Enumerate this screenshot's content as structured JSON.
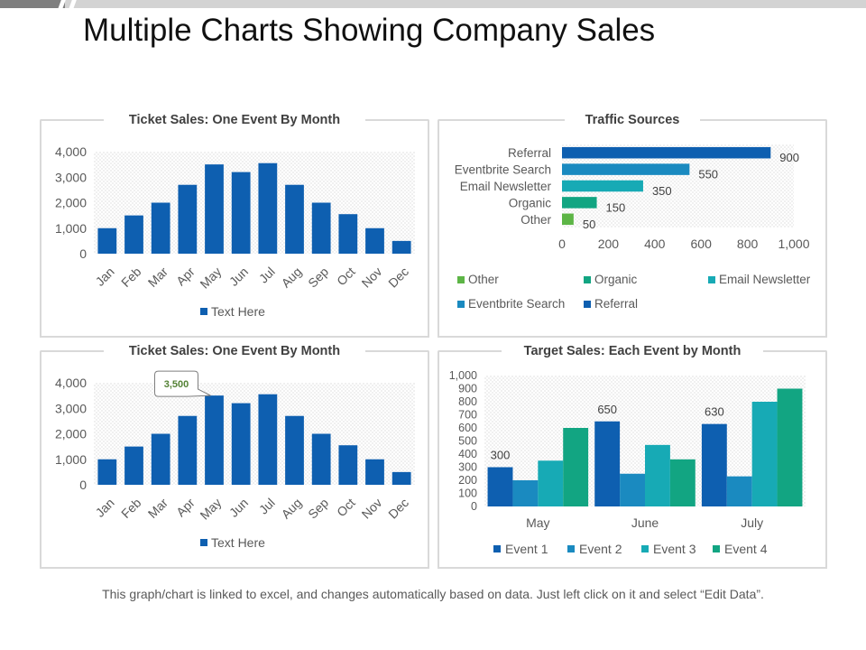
{
  "page": {
    "title": "Multiple Charts Showing Company Sales",
    "footnote": "This graph/chart is linked to excel, and changes automatically based on data. Just left click on it and select “Edit Data”."
  },
  "colors": {
    "blue_dark": "#0E5FB0",
    "blue_mid": "#1A8AC0",
    "teal": "#17AAB5",
    "green_teal": "#12A582",
    "green": "#5DB546",
    "panel_border": "#d9d9d9",
    "callout_text": "#548235"
  },
  "chart_data": [
    {
      "type": "bar",
      "title": "Ticket Sales: One Event By Month",
      "categories": [
        "Jan",
        "Feb",
        "Mar",
        "Apr",
        "May",
        "Jun",
        "Jul",
        "Aug",
        "Sep",
        "Oct",
        "Nov",
        "Dec"
      ],
      "series": [
        {
          "name": "Text Here",
          "values": [
            1000,
            1500,
            2000,
            2700,
            3500,
            3200,
            3550,
            2700,
            2000,
            1550,
            1000,
            500
          ]
        }
      ],
      "yticks": [
        "0",
        "1,000",
        "2,000",
        "3,000",
        "4,000"
      ],
      "ylim": [
        0,
        4000
      ],
      "legend": "bottom",
      "grid": false
    },
    {
      "type": "bar",
      "orientation": "horizontal",
      "title": "Traffic Sources",
      "categories": [
        "Referral",
        "Eventbrite Search",
        "Email Newsletter",
        "Organic",
        "Other"
      ],
      "values": [
        900,
        550,
        350,
        150,
        50
      ],
      "data_labels": [
        "900",
        "550",
        "350",
        "150",
        "50"
      ],
      "xticks": [
        "0",
        "200",
        "400",
        "600",
        "800",
        "1,000"
      ],
      "xlim": [
        0,
        1000
      ],
      "legend_entries": [
        "Other",
        "Organic",
        "Email Newsletter",
        "Eventbrite Search",
        "Referral"
      ],
      "legend": "bottom"
    },
    {
      "type": "bar",
      "title": "Ticket Sales: One Event By Month",
      "categories": [
        "Jan",
        "Feb",
        "Mar",
        "Apr",
        "May",
        "Jun",
        "Jul",
        "Aug",
        "Sep",
        "Oct",
        "Nov",
        "Dec"
      ],
      "series": [
        {
          "name": "Text Here",
          "values": [
            1000,
            1500,
            2000,
            2700,
            3500,
            3200,
            3550,
            2700,
            2000,
            1550,
            1000,
            500
          ]
        }
      ],
      "yticks": [
        "0",
        "1,000",
        "2,000",
        "3,000",
        "4,000"
      ],
      "ylim": [
        0,
        4000
      ],
      "callout": {
        "label": "3,500",
        "category": "May"
      },
      "legend": "bottom"
    },
    {
      "type": "bar",
      "title": "Target Sales: Each Event by Month",
      "categories": [
        "May",
        "June",
        "July"
      ],
      "series": [
        {
          "name": "Event 1",
          "values": [
            300,
            650,
            630
          ]
        },
        {
          "name": "Event 2",
          "values": [
            200,
            250,
            230
          ]
        },
        {
          "name": "Event 3",
          "values": [
            350,
            470,
            800
          ]
        },
        {
          "name": "Event 4",
          "values": [
            600,
            360,
            900
          ]
        }
      ],
      "data_labels": [
        "300",
        "650",
        "630"
      ],
      "yticks": [
        "0",
        "100",
        "200",
        "300",
        "400",
        "500",
        "600",
        "700",
        "800",
        "900",
        "1,000"
      ],
      "ylim": [
        0,
        1000
      ],
      "legend": "bottom"
    }
  ]
}
